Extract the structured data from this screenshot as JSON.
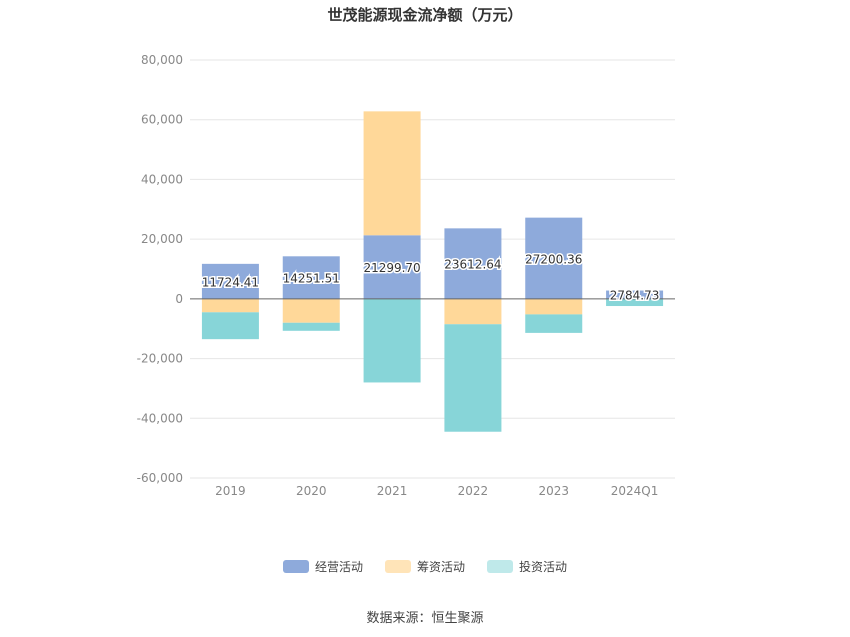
{
  "chart_data": {
    "type": "bar",
    "stacked": true,
    "title": "世茂能源现金流净额（万元）",
    "categories": [
      "2019",
      "2020",
      "2021",
      "2022",
      "2023",
      "2024Q1"
    ],
    "series": [
      {
        "name": "经营活动",
        "color": "#8eaadb",
        "values": [
          11724.41,
          14251.51,
          21299.7,
          23612.64,
          27200.36,
          2784.73
        ]
      },
      {
        "name": "筹资活动",
        "color": "#ffd899",
        "values": [
          -4500,
          -8000,
          41500,
          -8500,
          -5200,
          0
        ]
      },
      {
        "name": "投资活动",
        "color": "#87d5d8",
        "values": [
          -9000,
          -2700,
          -28000,
          -36000,
          -6200,
          -2400
        ]
      }
    ],
    "data_labels": [
      "11724.41",
      "14251.51",
      "21299.70",
      "23612.64",
      "27200.36",
      "2784.73"
    ],
    "ylim": [
      -60000,
      80000
    ],
    "yticks": [
      80000,
      60000,
      40000,
      20000,
      0,
      -20000,
      -40000,
      -60000
    ],
    "ytick_labels": [
      "80,000",
      "60,000",
      "40,000",
      "20,000",
      "0",
      "-20,000",
      "-40,000",
      "-60,000"
    ],
    "grid": true,
    "legend_position": "bottom"
  },
  "source": "数据来源：恒生聚源"
}
